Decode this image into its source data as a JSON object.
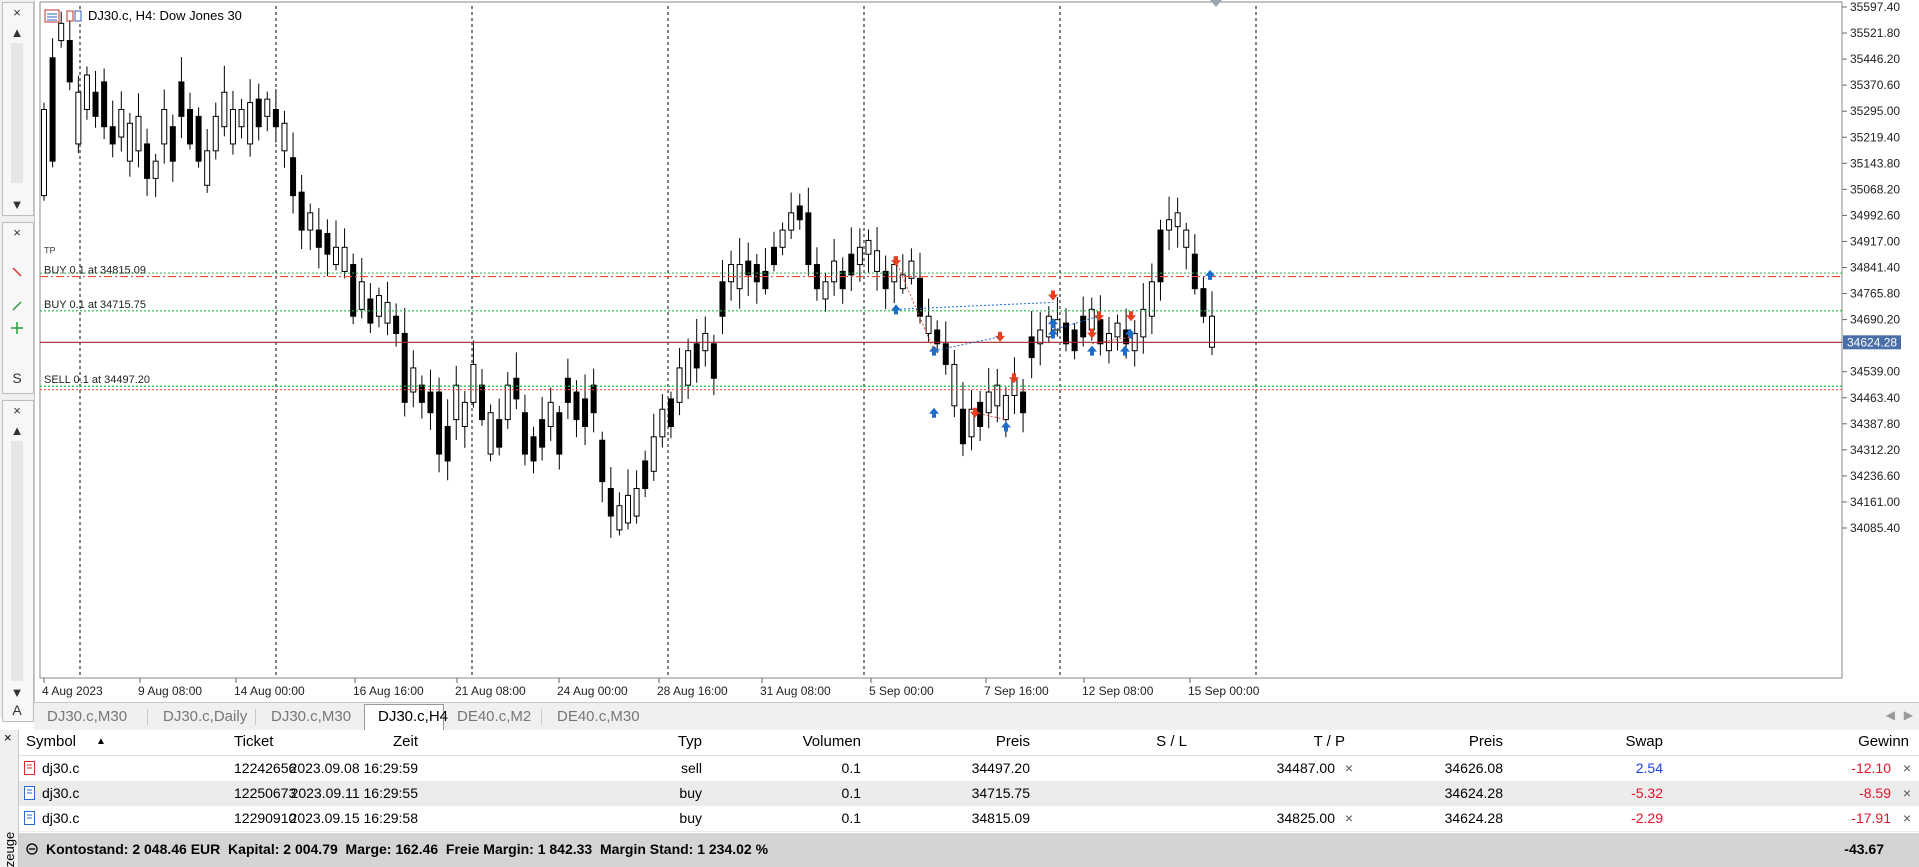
{
  "chart": {
    "title": "DJ30.c, H4:  Dow Jones 30",
    "current_price": "34624.28",
    "price_levels": [
      "35597.40",
      "35521.80",
      "35446.20",
      "35370.60",
      "35295.00",
      "35219.40",
      "35143.80",
      "35068.20",
      "34992.60",
      "34917.00",
      "34841.40",
      "34765.80",
      "34690.20",
      "34539.00",
      "34463.40",
      "34387.80",
      "34312.20",
      "34236.60",
      "34161.00",
      "34085.40"
    ],
    "time_labels": [
      "4 Aug 2023",
      "9 Aug 08:00",
      "14 Aug 00:00",
      "16 Aug 16:00",
      "21 Aug 08:00",
      "24 Aug 00:00",
      "28 Aug 16:00",
      "31 Aug 08:00",
      "5 Sep 00:00",
      "7 Sep 16:00",
      "12 Sep 08:00",
      "15 Sep 00:00"
    ],
    "order_lines": [
      {
        "label": "BUY 0.1 at 34815.09",
        "price": 34815.09,
        "color": "#e84a3a",
        "style": "dash-dot"
      },
      {
        "label": "BUY 0.1 at 34715.75",
        "price": 34715.75,
        "color": "#2fb34a",
        "style": "dotted"
      },
      {
        "label": "SELL 0.1 at 34497.20",
        "price": 34497.2,
        "color": "#2fb34a",
        "style": "dotted"
      }
    ],
    "sl_tp_lines": [
      {
        "price": 34825.0,
        "color": "#2fb34a"
      },
      {
        "price": 34487.0,
        "color": "#e84a3a"
      }
    ],
    "bid_line": {
      "price": 34624.28,
      "color": "#a0262a"
    },
    "small_label": "TP"
  },
  "tabs": [
    {
      "label": "DJ30.c,M30",
      "active": false
    },
    {
      "label": "DJ30.c,Daily",
      "active": false
    },
    {
      "label": "DJ30.c,M30",
      "active": false
    },
    {
      "label": "DJ30.c,H4",
      "active": true
    },
    {
      "label": "DE40.c,M2",
      "active": false
    },
    {
      "label": "DE40.c,M30",
      "active": false
    }
  ],
  "left_panel": {
    "strip_letter_s": "S",
    "strip_letter_a": "A",
    "tool_label": "zeuge"
  },
  "trades": {
    "headers": {
      "symbol": "Symbol",
      "ticket": "Ticket",
      "zeit": "Zeit",
      "typ": "Typ",
      "volumen": "Volumen",
      "preis": "Preis",
      "sl": "S / L",
      "tp": "T / P",
      "preis2": "Preis",
      "swap": "Swap",
      "gewinn": "Gewinn"
    },
    "rows": [
      {
        "symbol": "dj30.c",
        "ticket": "12242656",
        "zeit": "2023.09.08 16:29:59",
        "typ": "sell",
        "volumen": "0.1",
        "preis": "34497.20",
        "sl": "",
        "tp": "34487.00",
        "preis2": "34626.08",
        "swap": "2.54",
        "gewinn": "-12.10"
      },
      {
        "symbol": "dj30.c",
        "ticket": "12250673",
        "zeit": "2023.09.11 16:29:55",
        "typ": "buy",
        "volumen": "0.1",
        "preis": "34715.75",
        "sl": "",
        "tp": "",
        "preis2": "34624.28",
        "swap": "-5.32",
        "gewinn": "-8.59"
      },
      {
        "symbol": "dj30.c",
        "ticket": "12290910",
        "zeit": "2023.09.15 16:29:58",
        "typ": "buy",
        "volumen": "0.1",
        "preis": "34815.09",
        "sl": "",
        "tp": "34825.00",
        "preis2": "34624.28",
        "swap": "-2.29",
        "gewinn": "-17.91"
      }
    ],
    "footer": {
      "summary": "Kontostand: 2 048.46 EUR  Kapital: 2 004.79  Marge: 162.46  Freie Margin: 1 842.33  Margin Stand: 1 234.02 %",
      "total": "-43.67"
    }
  },
  "colors": {
    "bull": "#ffffff",
    "bear": "#000000",
    "positive": "#1f3fd8",
    "negative": "#e3142a",
    "buy_arrow": "#1c6cc8",
    "sell_arrow": "#e8401e"
  }
}
